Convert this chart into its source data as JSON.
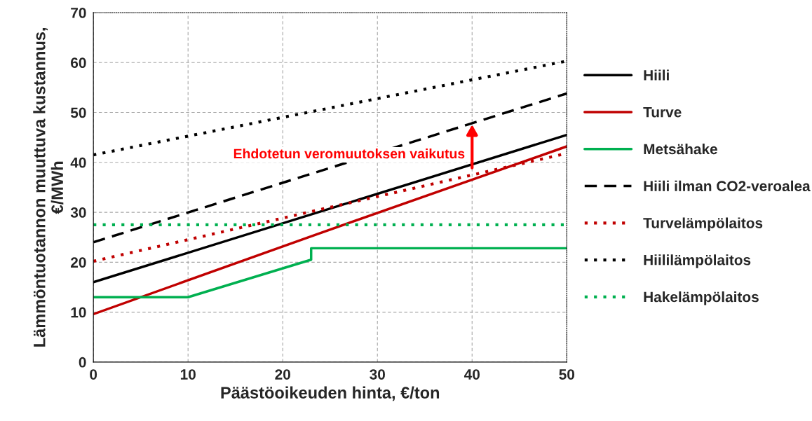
{
  "chart_data": {
    "type": "line",
    "xlabel": "Päästöoikeuden hinta, €/ton",
    "ylabel": "Lämmöntuotannon muuttuva kustannus, €/MWh",
    "xlim": [
      0,
      50
    ],
    "xticks": [
      0,
      10,
      20,
      30,
      40,
      50
    ],
    "ylim": [
      0,
      70
    ],
    "yticks": [
      0,
      10,
      20,
      30,
      40,
      50,
      60,
      70
    ],
    "grid": true,
    "legend": "right",
    "marker": "none",
    "series": [
      {
        "name": "Hiili",
        "color": "#000000",
        "line_style": "solid",
        "x": [
          0,
          50
        ],
        "values": [
          16,
          45.5
        ]
      },
      {
        "name": "Turve",
        "color": "#c00000",
        "line_style": "solid",
        "x": [
          0,
          23,
          50
        ],
        "values": [
          9.6,
          25.2,
          43.2
        ]
      },
      {
        "name": "Metsähake",
        "color": "#00b050",
        "line_style": "solid",
        "x": [
          0,
          10,
          23,
          23,
          50
        ],
        "values": [
          13,
          13,
          20.5,
          22.8,
          22.8
        ]
      },
      {
        "name": "Hiili ilman CO2-veroalea",
        "color": "#000000",
        "line_style": "dashed",
        "x": [
          0,
          50
        ],
        "values": [
          24,
          53.8
        ]
      },
      {
        "name": "Turvelämpölaitos",
        "color": "#c00000",
        "line_style": "dotted",
        "x": [
          0,
          50
        ],
        "values": [
          20.2,
          41.8
        ]
      },
      {
        "name": "Hiililämpölaitos",
        "color": "#000000",
        "line_style": "dotted",
        "x": [
          0,
          50
        ],
        "values": [
          41.5,
          60.3
        ]
      },
      {
        "name": "Hakelämpölaitos",
        "color": "#00b050",
        "line_style": "dotted",
        "x": [
          0,
          50
        ],
        "values": [
          27.5,
          27.5
        ]
      }
    ],
    "annotations": [
      "Ehdotetun veromuutoksen vaikutus"
    ]
  }
}
